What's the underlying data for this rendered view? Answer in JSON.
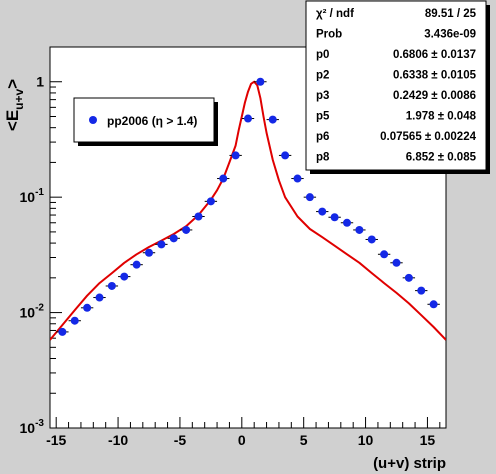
{
  "chart_data": {
    "type": "scatter",
    "xlabel": "(u+v) strip",
    "ylabel_main": "<E",
    "ylabel_sub": "u+v",
    "ylabel_close": ">",
    "xlim": [
      -15.5,
      16.5
    ],
    "ylim": [
      0.001,
      2
    ],
    "yscale": "log",
    "grid": false,
    "x_ticks": [
      -15,
      -10,
      -5,
      0,
      5,
      10,
      15
    ],
    "x_tick_labels": [
      "-15",
      "-10",
      "-5",
      "0",
      "5",
      "10",
      "15"
    ],
    "y_ticks": [
      0.001,
      0.01,
      0.1,
      1
    ],
    "y_tick_labels": [
      {
        "base": "10",
        "exp": "-3"
      },
      {
        "base": "10",
        "exp": "-2"
      },
      {
        "base": "10",
        "exp": "-1"
      },
      {
        "base": "1",
        "exp": ""
      }
    ],
    "legend": {
      "placement": "top-left",
      "label": "pp2006 (η > 1.4)"
    },
    "colors": {
      "points": "#1428e6",
      "fit": "#e00000",
      "frame_bg": "#d0d0d0",
      "plot_bg": "#ffffff"
    },
    "series": [
      {
        "name": "pp2006 (η > 1.4)",
        "x": [
          -14.5,
          -13.5,
          -12.5,
          -11.5,
          -10.5,
          -9.5,
          -8.5,
          -7.5,
          -6.5,
          -5.5,
          -4.5,
          -3.5,
          -2.5,
          -1.5,
          -0.5,
          0.5,
          1.5,
          2.5,
          3.5,
          4.5,
          5.5,
          6.5,
          7.5,
          8.5,
          9.5,
          10.5,
          11.5,
          12.5,
          13.5,
          14.5,
          15.5
        ],
        "y": [
          0.0068,
          0.0085,
          0.011,
          0.0135,
          0.017,
          0.0205,
          0.026,
          0.033,
          0.039,
          0.044,
          0.052,
          0.068,
          0.092,
          0.145,
          0.23,
          0.48,
          1.0,
          0.47,
          0.23,
          0.145,
          0.1,
          0.075,
          0.067,
          0.06,
          0.052,
          0.043,
          0.032,
          0.027,
          0.02,
          0.0155,
          0.0118
        ]
      },
      {
        "name": "",
        "x": [
          -15.5,
          -14.5,
          -13.5,
          -12.5,
          -11.5,
          -10.5,
          -9.5,
          -8.5,
          -7.5,
          -6.5,
          -5.5,
          -4.5,
          -3.5,
          -2.5,
          -2.0,
          -1.5,
          -1.0,
          -0.5,
          -0.25,
          0.0,
          0.25,
          0.5,
          0.75,
          1.0,
          1.25,
          1.5,
          1.75,
          2.0,
          2.5,
          3.0,
          3.5,
          4.5,
          5.5,
          6.5,
          7.5,
          8.5,
          9.5,
          10.5,
          11.5,
          12.5,
          13.5,
          14.5,
          15.5,
          16.5
        ],
        "y": [
          0.0058,
          0.0078,
          0.0105,
          0.014,
          0.018,
          0.022,
          0.027,
          0.032,
          0.037,
          0.042,
          0.048,
          0.056,
          0.07,
          0.095,
          0.115,
          0.145,
          0.2,
          0.28,
          0.38,
          0.5,
          0.66,
          0.82,
          0.96,
          1.0,
          0.93,
          0.72,
          0.5,
          0.36,
          0.21,
          0.14,
          0.1,
          0.068,
          0.053,
          0.045,
          0.038,
          0.032,
          0.027,
          0.022,
          0.018,
          0.0148,
          0.012,
          0.0095,
          0.0075,
          0.0058
        ]
      }
    ]
  },
  "stats_box": {
    "rows": [
      {
        "label": "χ² / ndf",
        "value": "89.51 / 25"
      },
      {
        "label": "Prob",
        "value": "3.436e-09"
      },
      {
        "label": "p0",
        "value": "0.6806 ± 0.0137"
      },
      {
        "label": "p2",
        "value": "0.6338 ± 0.0105"
      },
      {
        "label": "p3",
        "value": "0.2429 ± 0.0086"
      },
      {
        "label": "p5",
        "value": "1.978 ± 0.048"
      },
      {
        "label": "p6",
        "value": "0.07565 ± 0.00224"
      },
      {
        "label": "p8",
        "value": "6.852 ± 0.085"
      }
    ]
  }
}
